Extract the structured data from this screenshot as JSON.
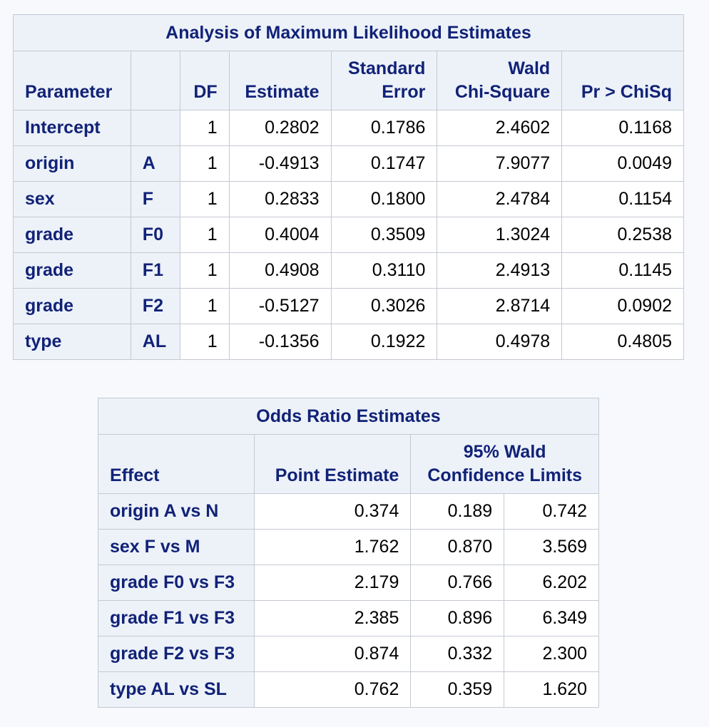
{
  "mle_table": {
    "title": "Analysis of Maximum Likelihood Estimates",
    "headers": {
      "parameter": "Parameter",
      "level": "",
      "df": "DF",
      "estimate": "Estimate",
      "std_error_line1": "Standard",
      "std_error_line2": "Error",
      "wald_line1": "Wald",
      "wald_line2": "Chi-Square",
      "p_value": "Pr > ChiSq"
    },
    "rows": [
      {
        "parameter": "Intercept",
        "level": "",
        "df": "1",
        "estimate": "0.2802",
        "std_error": "0.1786",
        "wald_chisq": "2.4602",
        "p_value": "0.1168"
      },
      {
        "parameter": "origin",
        "level": "A",
        "df": "1",
        "estimate": "-0.4913",
        "std_error": "0.1747",
        "wald_chisq": "7.9077",
        "p_value": "0.0049"
      },
      {
        "parameter": "sex",
        "level": "F",
        "df": "1",
        "estimate": "0.2833",
        "std_error": "0.1800",
        "wald_chisq": "2.4784",
        "p_value": "0.1154"
      },
      {
        "parameter": "grade",
        "level": "F0",
        "df": "1",
        "estimate": "0.4004",
        "std_error": "0.3509",
        "wald_chisq": "1.3024",
        "p_value": "0.2538"
      },
      {
        "parameter": "grade",
        "level": "F1",
        "df": "1",
        "estimate": "0.4908",
        "std_error": "0.3110",
        "wald_chisq": "2.4913",
        "p_value": "0.1145"
      },
      {
        "parameter": "grade",
        "level": "F2",
        "df": "1",
        "estimate": "-0.5127",
        "std_error": "0.3026",
        "wald_chisq": "2.8714",
        "p_value": "0.0902"
      },
      {
        "parameter": "type",
        "level": "AL",
        "df": "1",
        "estimate": "-0.1356",
        "std_error": "0.1922",
        "wald_chisq": "0.4978",
        "p_value": "0.4805"
      }
    ]
  },
  "odds_table": {
    "title": "Odds Ratio Estimates",
    "headers": {
      "effect": "Effect",
      "point_estimate": "Point Estimate",
      "ci_line1": "95% Wald",
      "ci_line2": "Confidence Limits"
    },
    "rows": [
      {
        "effect": "origin A vs N",
        "point": "0.374",
        "lower": "0.189",
        "upper": "0.742"
      },
      {
        "effect": "sex F vs M",
        "point": "1.762",
        "lower": "0.870",
        "upper": "3.569"
      },
      {
        "effect": "grade F0 vs F3",
        "point": "2.179",
        "lower": "0.766",
        "upper": "6.202"
      },
      {
        "effect": "grade F1 vs F3",
        "point": "2.385",
        "lower": "0.896",
        "upper": "6.349"
      },
      {
        "effect": "grade F2 vs F3",
        "point": "0.874",
        "lower": "0.332",
        "upper": "2.300"
      },
      {
        "effect": "type AL vs SL",
        "point": "0.762",
        "lower": "0.359",
        "upper": "1.620"
      }
    ]
  }
}
